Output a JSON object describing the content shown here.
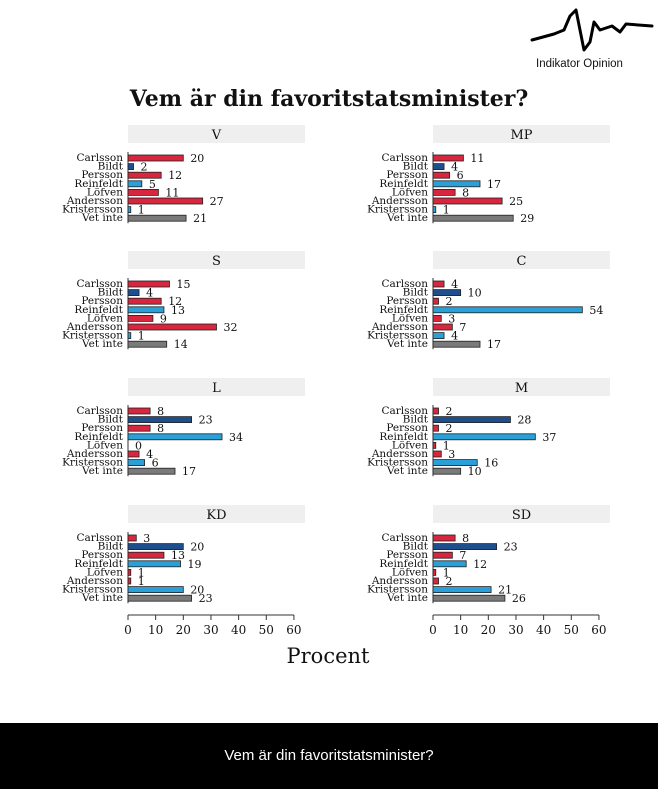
{
  "logo": {
    "text": "Indikator Opinion"
  },
  "title": "Vem är din favoritstatsminister?",
  "footer": {
    "text": "Vem är din favoritstatsminister?"
  },
  "colors": {
    "Carlsson": "#d7263d",
    "Bildt": "#1f4e8c",
    "Persson": "#d7263d",
    "Reinfeldt": "#2a9fd8",
    "Löfven": "#d7263d",
    "Andersson": "#d7263d",
    "Kristersson": "#2a9fd8",
    "Vet inte": "#7a7a7a",
    "panel_header": "#efefef"
  },
  "chart_data": {
    "type": "bar",
    "orientation": "horizontal",
    "categories": [
      "Carlsson",
      "Bildt",
      "Persson",
      "Reinfeldt",
      "Löfven",
      "Andersson",
      "Kristersson",
      "Vet inte"
    ],
    "xlabel": "Procent",
    "xlim": [
      0,
      64
    ],
    "xticks": [
      0,
      10,
      20,
      30,
      40,
      50,
      60
    ],
    "panels": [
      {
        "party": "V",
        "values": [
          20,
          2,
          12,
          5,
          11,
          27,
          1,
          21
        ]
      },
      {
        "party": "MP",
        "values": [
          11,
          4,
          6,
          17,
          8,
          25,
          1,
          29
        ]
      },
      {
        "party": "S",
        "values": [
          15,
          4,
          12,
          13,
          9,
          32,
          1,
          14
        ]
      },
      {
        "party": "C",
        "values": [
          4,
          10,
          2,
          54,
          3,
          7,
          4,
          17
        ]
      },
      {
        "party": "L",
        "values": [
          8,
          23,
          8,
          34,
          0,
          4,
          6,
          17
        ]
      },
      {
        "party": "M",
        "values": [
          2,
          28,
          2,
          37,
          1,
          3,
          16,
          10
        ]
      },
      {
        "party": "KD",
        "values": [
          3,
          20,
          13,
          19,
          1,
          1,
          20,
          23
        ]
      },
      {
        "party": "SD",
        "values": [
          8,
          23,
          7,
          12,
          1,
          2,
          21,
          26
        ]
      }
    ]
  }
}
